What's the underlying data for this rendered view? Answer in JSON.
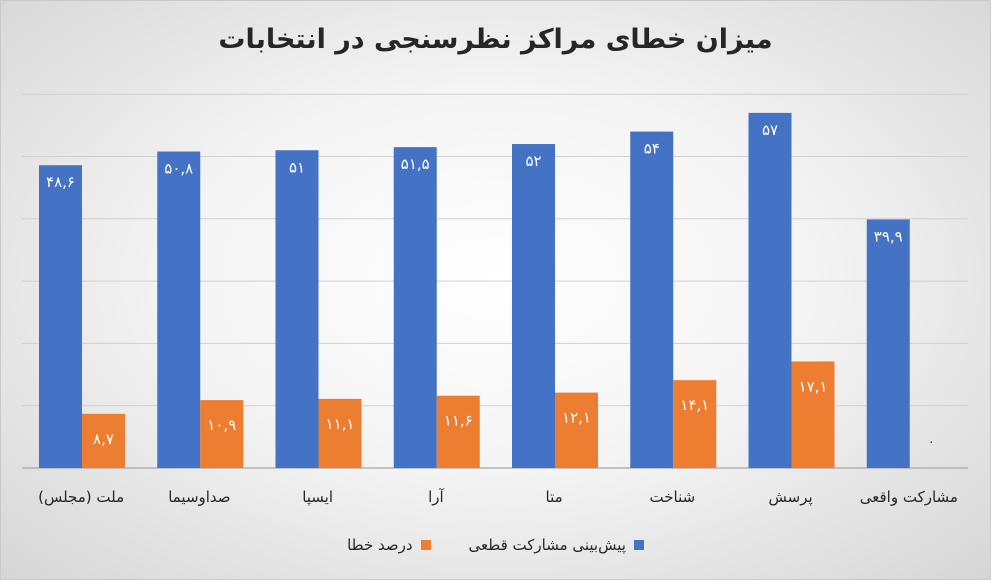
{
  "chart_data": {
    "type": "bar",
    "title": "میزان خطای مراکز نظرسنجی در انتخابات",
    "categories": [
      "مشارکت واقعی",
      "پرسش",
      "متا",
      "شناخت",
      "آرا",
      "ایسپا",
      "صداوسیما",
      "ملت (مجلس)"
    ],
    "display_order_left_to_right": [
      "ملت (مجلس)",
      "صداوسیما",
      "ایسپا",
      "آرا",
      "متا",
      "شناخت",
      "پرسش",
      "مشارکت واقعی"
    ],
    "bars_left_to_right": [
      {
        "category": "ملت (مجلس)",
        "prediction": 48.6,
        "prediction_label": "۴۸,۶",
        "error": 8.7,
        "error_label": "۸,۷"
      },
      {
        "category": "صداوسیما",
        "prediction": 50.8,
        "prediction_label": "۵۰,۸",
        "error": 10.9,
        "error_label": "۱۰,۹"
      },
      {
        "category": "ایسپا",
        "prediction": 51,
        "prediction_label": "۵۱",
        "error": 11.1,
        "error_label": "۱۱,۱"
      },
      {
        "category": "آرا",
        "prediction": 51.5,
        "prediction_label": "۵۱,۵",
        "error": 11.6,
        "error_label": "۱۱,۶"
      },
      {
        "category": "متا",
        "prediction": 52,
        "prediction_label": "۵۲",
        "error": 12.1,
        "error_label": "۱۲,۱"
      },
      {
        "category": "شناخت",
        "prediction": 54,
        "prediction_label": "۵۴",
        "error": 14.1,
        "error_label": "۱۴,۱"
      },
      {
        "category": "پرسش",
        "prediction": 57,
        "prediction_label": "۵۷",
        "error": 17.1,
        "error_label": "۱۷,۱"
      },
      {
        "category": "مشارکت واقعی",
        "prediction": 39.9,
        "prediction_label": "۳۹,۹",
        "error": 0,
        "error_label": "۰"
      }
    ],
    "series": [
      {
        "name": "پیش‌بینی مشارکت قطعی",
        "color": "#4472C4"
      },
      {
        "name": "درصد خطا",
        "color": "#ED7D31"
      }
    ],
    "ylim": [
      0,
      60
    ],
    "grid": true,
    "legend_position": "bottom",
    "xlabel": "",
    "ylabel": ""
  }
}
